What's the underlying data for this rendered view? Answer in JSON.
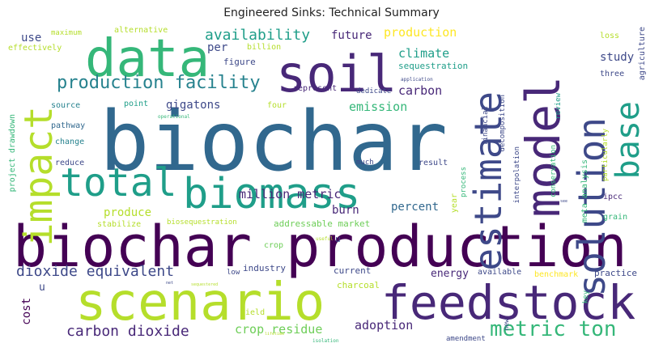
{
  "title": "Engineered Sinks: Technical Summary",
  "words": {
    "biochar": "biochar",
    "biochar_production": "biochar production",
    "scenario": "scenario",
    "feedstock": "feedstock",
    "data": "data",
    "soil": "soil",
    "model": "model",
    "biomass": "biomass",
    "total": "total",
    "estimate": "estimate",
    "solution": "solution",
    "impact": "impact",
    "base": "base",
    "metric_ton": "metric ton",
    "production_facility": "production facility",
    "availability": "availability",
    "dioxide_equivalent": "dioxide equivalent",
    "carbon_dioxide": "carbon dioxide",
    "crop_residue": "crop residue",
    "adoption": "adoption",
    "million_metric": "million metric",
    "gigatons": "gigatons",
    "emission": "emission",
    "climate": "climate",
    "carbon": "carbon",
    "production": "production",
    "future": "future",
    "use": "use",
    "per": "per",
    "percent": "percent",
    "produce": "produce",
    "burn": "burn",
    "cost": "cost",
    "u": "u",
    "study": "study",
    "sequestration": "sequestration",
    "figure": "figure",
    "billion": "billion",
    "maximum": "maximum",
    "alternative": "alternative",
    "effectively": "effectively",
    "loss": "loss",
    "agriculture": "agriculture",
    "represent": "represent",
    "dedicate": "dedicate",
    "point": "point",
    "four": "four",
    "three": "three",
    "review": "review",
    "source": "source",
    "pathway": "pathway",
    "change": "change",
    "reduce": "reduce",
    "project_drawdown": "project drawdown",
    "stabilize": "stabilize",
    "biosequestration": "biosequestration",
    "addressable_market": "addressable market",
    "year": "year",
    "industry": "industry",
    "current": "current",
    "energy": "energy",
    "available": "available",
    "benchmark": "benchmark",
    "practice": "practice",
    "charcoal": "charcoal",
    "low": "low",
    "yield": "yield",
    "crop": "crop",
    "result": "result",
    "much": "much",
    "process": "process",
    "financial": "financial",
    "decomposition": "decomposition",
    "interpolation": "interpolation",
    "conservation": "conservation",
    "meta_analysis": "meta analysis",
    "particularly": "particularly",
    "ipcc": "ipcc",
    "grain": "grain",
    "key": "key",
    "new": "new",
    "amendment": "amendment",
    "application": "application",
    "operational": "operational",
    "useful": "useful",
    "sequestered": "sequestered",
    "lifetime": "lifetime",
    "isolation": "isolation",
    "see": "see",
    "net": "net"
  },
  "colors": {
    "dark_purple": "#440154",
    "purple": "#482878",
    "indigo": "#3e4989",
    "blue": "#31688e",
    "teal_blue": "#26828e",
    "teal": "#1f9e89",
    "green": "#35b779",
    "light_green": "#6ece58",
    "lime": "#b5de2b",
    "yellow": "#fde725"
  }
}
